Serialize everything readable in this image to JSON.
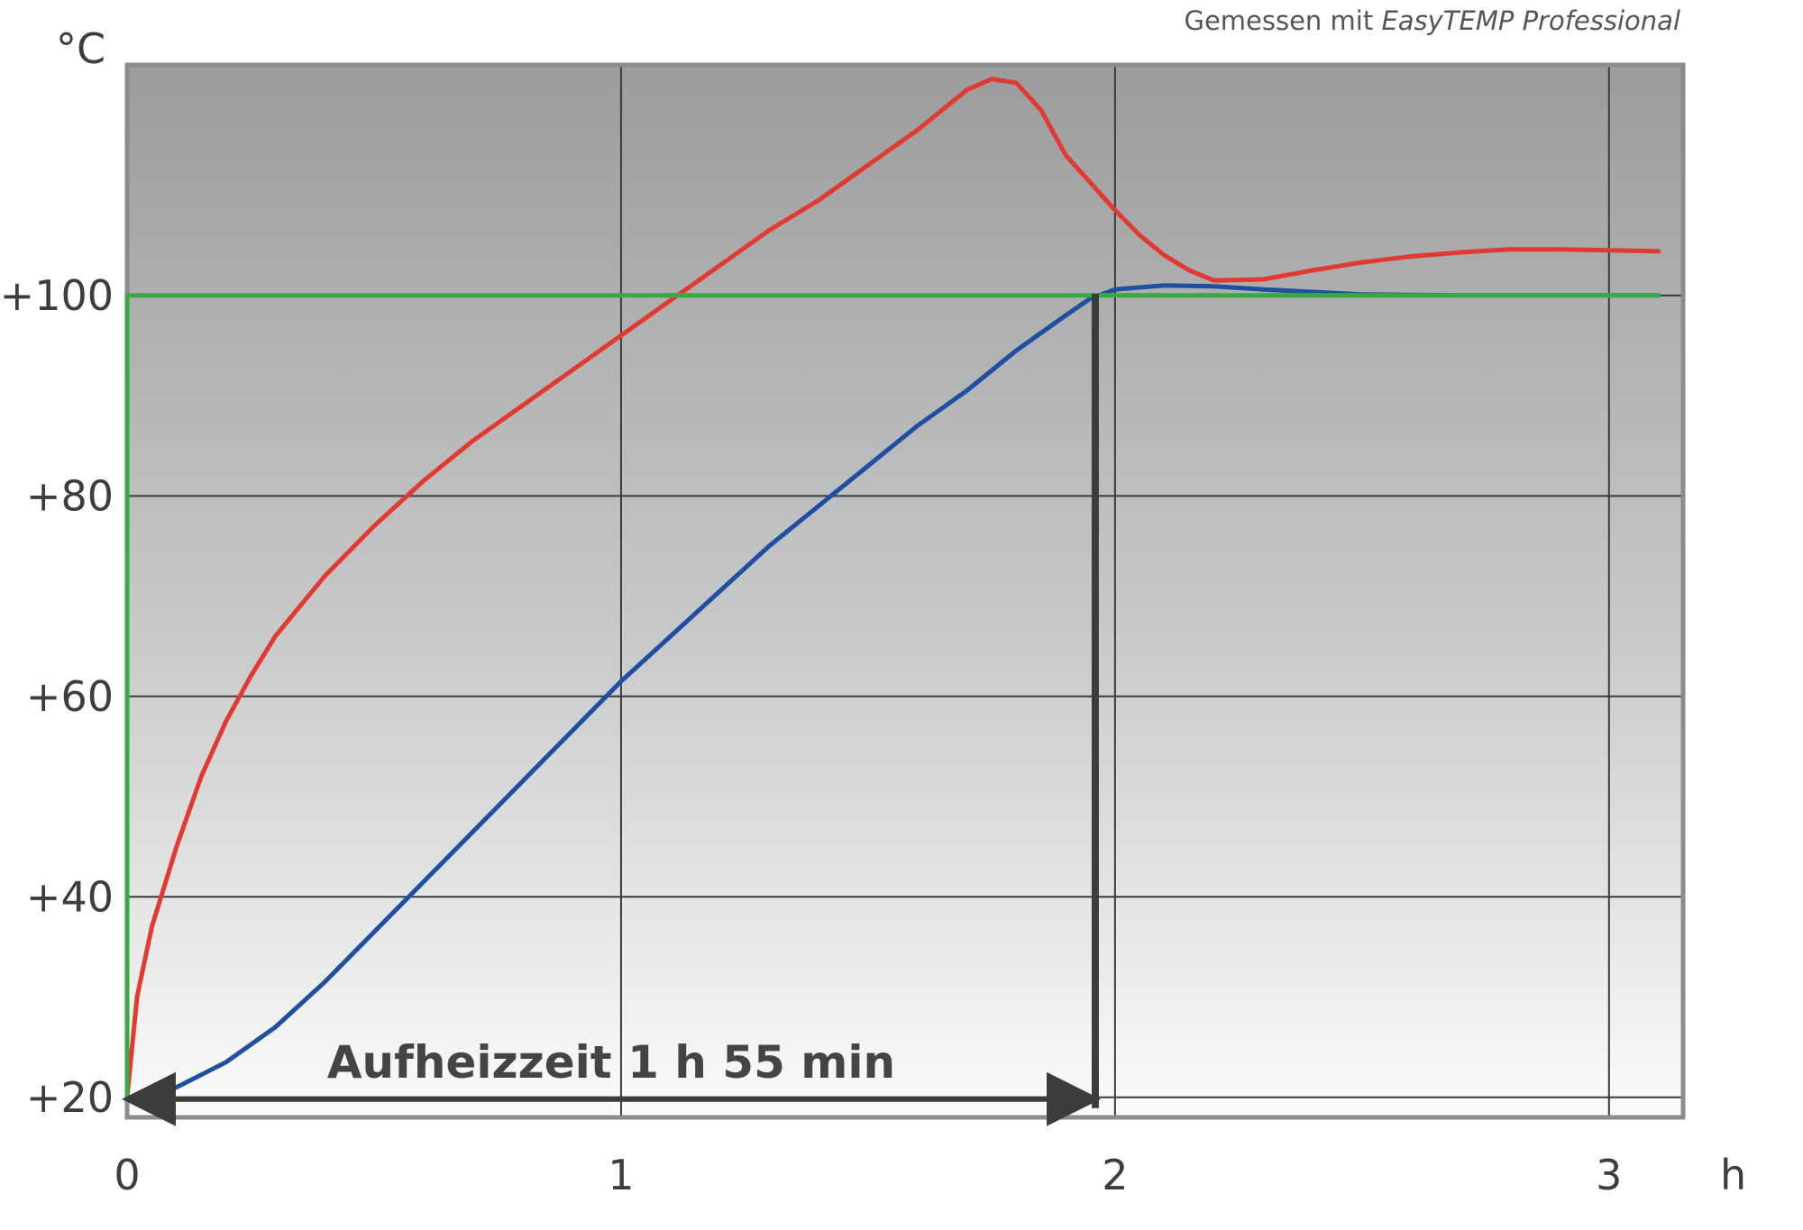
{
  "chart_data": {
    "type": "line",
    "credit_prefix": "Gemessen mit",
    "credit_product": "EasyTEMP Professional",
    "ylabel": "°C",
    "xlabel": "h",
    "xlim": [
      0,
      3.15
    ],
    "ylim": [
      18,
      123
    ],
    "y_gridlines": [
      20,
      40,
      60,
      80,
      100
    ],
    "x_gridlines": [
      1,
      2,
      3
    ],
    "y_ticks": [
      {
        "value": 20,
        "label": "+20"
      },
      {
        "value": 40,
        "label": "+40"
      },
      {
        "value": 60,
        "label": "+60"
      },
      {
        "value": 80,
        "label": "+80"
      },
      {
        "value": 100,
        "label": "+100"
      }
    ],
    "x_ticks": [
      {
        "value": 0,
        "label": "0"
      },
      {
        "value": 1,
        "label": "1"
      },
      {
        "value": 2,
        "label": "2"
      },
      {
        "value": 3,
        "label": "3"
      }
    ],
    "grid": true,
    "background": "vertical gradient dark grey to white",
    "series": [
      {
        "color": "#e23a30",
        "x": [
          0,
          0.02,
          0.05,
          0.1,
          0.15,
          0.2,
          0.25,
          0.3,
          0.4,
          0.5,
          0.6,
          0.7,
          0.8,
          0.9,
          1.0,
          1.1,
          1.2,
          1.3,
          1.4,
          1.5,
          1.6,
          1.7,
          1.75,
          1.8,
          1.85,
          1.9,
          2.0,
          2.05,
          2.1,
          2.15,
          2.2,
          2.3,
          2.4,
          2.5,
          2.6,
          2.7,
          2.8,
          2.9,
          3.0,
          3.1
        ],
        "y": [
          20,
          30,
          37,
          45,
          52,
          57.5,
          62,
          66,
          72,
          77,
          81.5,
          85.5,
          89,
          92.5,
          96,
          99.5,
          103,
          106.5,
          109.5,
          113,
          116.5,
          120.5,
          121.6,
          121.2,
          118.5,
          114,
          108.5,
          106,
          104,
          102.5,
          101.5,
          101.6,
          102.5,
          103.3,
          103.9,
          104.3,
          104.6,
          104.6,
          104.5,
          104.4
        ]
      },
      {
        "color": "#1f4fa0",
        "x": [
          0,
          0.05,
          0.1,
          0.2,
          0.3,
          0.4,
          0.5,
          0.6,
          0.7,
          0.8,
          0.9,
          1.0,
          1.1,
          1.2,
          1.3,
          1.4,
          1.5,
          1.6,
          1.7,
          1.8,
          1.9,
          1.95,
          2.0,
          2.1,
          2.2,
          2.3,
          2.5,
          2.7,
          2.9,
          3.1
        ],
        "y": [
          20,
          20.3,
          21,
          23.5,
          27,
          31.5,
          36.5,
          41.5,
          46.5,
          51.5,
          56.5,
          61.5,
          66,
          70.5,
          75,
          79,
          83,
          87,
          90.5,
          94.5,
          98,
          99.7,
          100.6,
          101,
          100.9,
          100.6,
          100.1,
          100,
          100,
          100
        ]
      },
      {
        "color": "#3aa845",
        "x": [
          0,
          0,
          3.1
        ],
        "y": [
          20,
          100,
          100
        ]
      }
    ],
    "annotations": [
      {
        "text": "Aufheizzeit 1 h 55 min",
        "x_start": 0,
        "x_end": 1.96,
        "y": 20
      }
    ]
  }
}
